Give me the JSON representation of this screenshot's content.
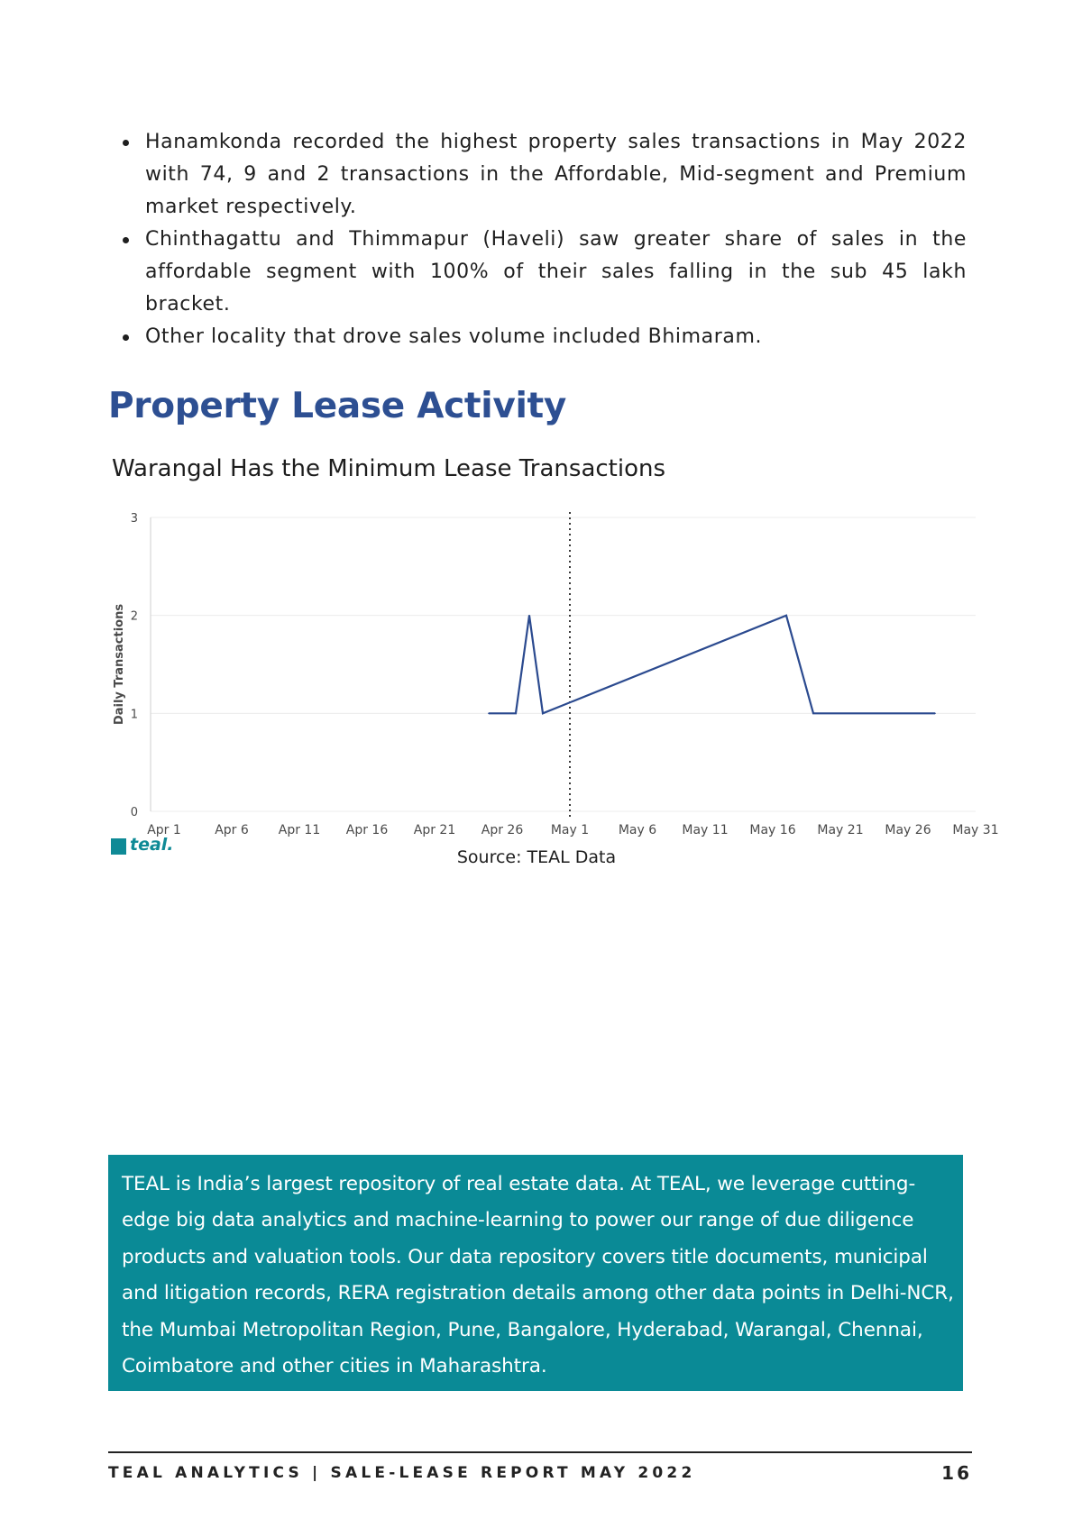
{
  "bullets": [
    "Hanamkonda recorded the highest property sales transactions in May 2022 with 74, 9 and 2 transactions in the Affordable, Mid-segment and Premium market respectively.",
    "Chinthagattu and Thimmapur (Haveli) saw greater share of sales in the affordable segment with 100% of their sales falling in the sub 45 lakh bracket.",
    "Other locality that drove sales volume included Bhimaram."
  ],
  "section_title": "Property Lease Activity",
  "chart_title": "Warangal Has the Minimum Lease Transactions",
  "chart_data": {
    "type": "line",
    "title": "Warangal Has the Minimum Lease Transactions",
    "xlabel": "",
    "ylabel": "Daily Transactions",
    "x_ticks": [
      "Apr 1",
      "Apr 6",
      "Apr 11",
      "Apr 16",
      "Apr 21",
      "Apr 26",
      "May 1",
      "May 6",
      "May 11",
      "May 16",
      "May 21",
      "May 26",
      "May 31"
    ],
    "y_ticks": [
      0,
      1,
      2,
      3
    ],
    "xlim": [
      "2022-03-31",
      "2022-05-31"
    ],
    "ylim": [
      0,
      3
    ],
    "vertical_marker": "2022-05-01",
    "grid": "horizontal",
    "series": [
      {
        "name": "",
        "color": "#2b4a8f",
        "points": [
          {
            "x": "2022-04-25",
            "y": 1
          },
          {
            "x": "2022-04-27",
            "y": 1
          },
          {
            "x": "2022-04-28",
            "y": 2
          },
          {
            "x": "2022-04-29",
            "y": 1
          },
          {
            "x": "2022-05-17",
            "y": 2
          },
          {
            "x": "2022-05-19",
            "y": 1
          },
          {
            "x": "2022-05-28",
            "y": 1
          }
        ]
      }
    ]
  },
  "logo_text": "teal.",
  "source": "Source: TEAL Data",
  "about_text": " TEAL is India’s largest repository of real estate data. At TEAL, we leverage cutting-edge big data analytics and machine-learning to power our range of due diligence products and valuation tools. Our data repository covers title documents, municipal and litigation records, RERA registration details among other data points in Delhi-NCR, the Mumbai Metropolitan Region, Pune, Bangalore, Hyderabad, Warangal, Chennai, Coimbatore and other cities in Maharashtra.",
  "footer": {
    "left": "TEAL ANALYTICS | SALE-LEASE REPORT MAY 2022",
    "page": "16"
  },
  "colors": {
    "heading": "#2d4f92",
    "line": "#2b4a8f",
    "box": "#0a8a96",
    "logo": "#0f8a96"
  }
}
